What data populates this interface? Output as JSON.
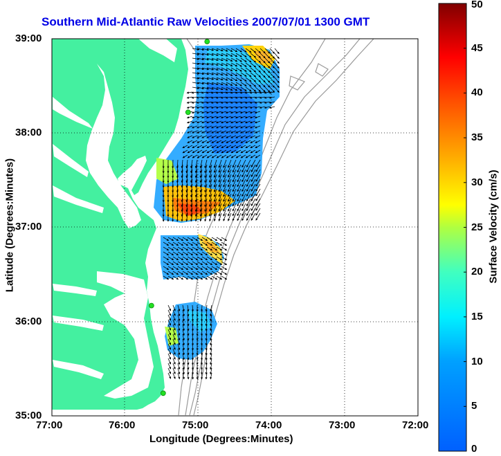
{
  "title": "Southern Mid-Atlantic Raw Velocities 2007/07/01 1300 GMT",
  "axes": {
    "xlabel": "Longitude (Degrees:Minutes)",
    "ylabel": "Latitude (Degrees:Minutes)",
    "x_ticks": [
      "77:00",
      "76:00",
      "75:00",
      "74:00",
      "73:00",
      "72:00"
    ],
    "y_ticks": [
      "39:00",
      "38:00",
      "37:00",
      "36:00",
      "35:00"
    ],
    "xlim_deg_west": [
      77,
      72
    ],
    "ylim_deg_north": [
      35,
      39
    ],
    "grid": "dotted"
  },
  "colorbar": {
    "label": "Surface Velocity (cm/s)",
    "ticks": [
      "0",
      "5",
      "10",
      "15",
      "20",
      "25",
      "30",
      "35",
      "40",
      "45",
      "50"
    ],
    "range": [
      0,
      50
    ],
    "colormap": "jet"
  },
  "colors": {
    "land": "#44f0a0",
    "title": "#0000e6",
    "bathymetry": "#999999",
    "stations": "#22e022"
  },
  "stations": [
    {
      "lon": 74.88,
      "lat": 38.97
    },
    {
      "lon": 75.14,
      "lat": 38.22
    },
    {
      "lon": 75.64,
      "lat": 36.17
    },
    {
      "lon": 75.48,
      "lat": 35.24
    }
  ]
}
